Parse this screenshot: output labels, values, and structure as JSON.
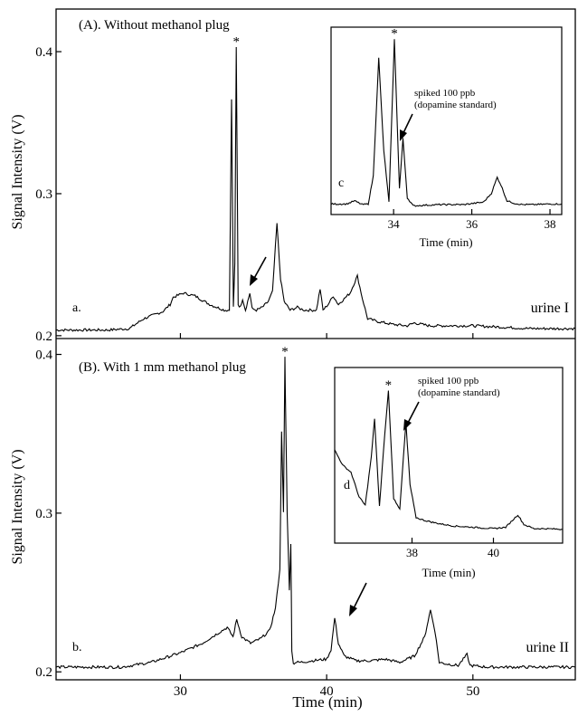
{
  "chart_data": [
    {
      "type": "line",
      "title": "(A). Without methanol plug",
      "ylabel": "Signal Intensity (V)",
      "xlabel": "",
      "xlim": [
        21.5,
        57
      ],
      "ylim": [
        0.198,
        0.43
      ],
      "yticks": [
        0.2,
        0.3,
        0.4
      ],
      "xticks": [
        30,
        40,
        50
      ],
      "show_x_tick_labels": false,
      "grid": false,
      "panel_label": "a.",
      "series": [
        {
          "name": "urine I",
          "x": [
            21.5,
            25,
            26.5,
            27.5,
            28.8,
            29.3,
            29.5,
            30.2,
            31.0,
            32.0,
            33.0,
            33.35,
            33.5,
            33.62,
            33.72,
            33.82,
            33.95,
            34.1,
            34.25,
            34.45,
            34.6,
            34.75,
            34.9,
            35.2,
            35.6,
            36.0,
            36.3,
            36.6,
            36.85,
            37.1,
            37.5,
            38.0,
            38.2,
            38.5,
            39.3,
            39.55,
            39.75,
            40.1,
            40.45,
            40.8,
            41.2,
            41.6,
            42.1,
            42.45,
            42.8,
            43.5,
            44.5,
            45.5,
            46.0,
            47.0,
            48.0,
            50.0,
            52.0,
            54.0,
            57.0
          ],
          "y": [
            0.204,
            0.204,
            0.205,
            0.212,
            0.217,
            0.222,
            0.227,
            0.23,
            0.228,
            0.222,
            0.218,
            0.218,
            0.366,
            0.22,
            0.25,
            0.403,
            0.222,
            0.22,
            0.226,
            0.218,
            0.224,
            0.23,
            0.219,
            0.218,
            0.22,
            0.224,
            0.231,
            0.279,
            0.24,
            0.224,
            0.218,
            0.22,
            0.219,
            0.218,
            0.218,
            0.233,
            0.218,
            0.222,
            0.228,
            0.222,
            0.226,
            0.23,
            0.242,
            0.226,
            0.212,
            0.21,
            0.208,
            0.207,
            0.209,
            0.207,
            0.207,
            0.207,
            0.206,
            0.205,
            0.205
          ]
        }
      ],
      "annotations": [
        {
          "text": "*",
          "x": 33.82
        }
      ]
    },
    {
      "type": "line",
      "title": "(B). With 1 mm methanol plug",
      "ylabel": "Signal Intensity (V)",
      "xlabel": "Time (min)",
      "xlim": [
        21.5,
        57
      ],
      "ylim": [
        0.195,
        0.41
      ],
      "yticks": [
        0.2,
        0.3,
        0.4
      ],
      "xticks": [
        30,
        40,
        50
      ],
      "grid": false,
      "panel_label": "b.",
      "series": [
        {
          "name": "urine II",
          "x": [
            21.5,
            26,
            28,
            30,
            31.5,
            32.5,
            33.2,
            33.6,
            33.85,
            34.2,
            34.8,
            35.5,
            36.1,
            36.5,
            36.8,
            36.92,
            37.05,
            37.15,
            37.2,
            37.3,
            37.45,
            37.55,
            37.62,
            37.72,
            37.85,
            38.2,
            39,
            40.0,
            40.3,
            40.55,
            40.8,
            41.2,
            42.0,
            43.0,
            44.0,
            45.0,
            46.0,
            46.7,
            47.1,
            47.4,
            47.7,
            48.2,
            49.0,
            49.6,
            49.8,
            51,
            54,
            57
          ],
          "y": [
            0.203,
            0.203,
            0.206,
            0.212,
            0.218,
            0.224,
            0.228,
            0.222,
            0.233,
            0.222,
            0.218,
            0.221,
            0.226,
            0.24,
            0.265,
            0.352,
            0.3,
            0.398,
            0.36,
            0.3,
            0.252,
            0.28,
            0.214,
            0.205,
            0.206,
            0.206,
            0.207,
            0.208,
            0.214,
            0.234,
            0.218,
            0.21,
            0.207,
            0.207,
            0.208,
            0.206,
            0.21,
            0.222,
            0.239,
            0.226,
            0.206,
            0.205,
            0.204,
            0.211,
            0.204,
            0.203,
            0.203,
            0.203
          ]
        }
      ],
      "annotations": [
        {
          "text": "*",
          "x": 37.15
        }
      ]
    },
    {
      "type": "line",
      "title": "",
      "xlabel": "Time (min)",
      "xlim": [
        32.4,
        38.3
      ],
      "ylim": [
        0.198,
        0.5
      ],
      "xticks": [
        34,
        36,
        38
      ],
      "grid": false,
      "panel_label": "c",
      "series": [
        {
          "name": "",
          "x": [
            32.4,
            32.8,
            33.0,
            33.2,
            33.35,
            33.48,
            33.62,
            33.75,
            33.88,
            34.02,
            34.15,
            34.24,
            34.35,
            34.5,
            34.8,
            35.2,
            35.8,
            36.3,
            36.5,
            36.65,
            36.75,
            36.9,
            37.1,
            37.3,
            37.6,
            38.0,
            38.3
          ],
          "y": [
            0.215,
            0.215,
            0.22,
            0.214,
            0.215,
            0.26,
            0.45,
            0.3,
            0.218,
            0.48,
            0.24,
            0.32,
            0.225,
            0.212,
            0.213,
            0.214,
            0.214,
            0.218,
            0.232,
            0.258,
            0.245,
            0.22,
            0.216,
            0.214,
            0.214,
            0.215,
            0.215
          ]
        }
      ],
      "annotations": [
        {
          "text": "*",
          "x": 34.02
        },
        {
          "text": "spiked 100 ppb",
          "x": 34.3
        },
        {
          "text": "(dopamine standard)",
          "x": 34.3
        }
      ]
    },
    {
      "type": "line",
      "title": "",
      "xlabel": "Time (min)",
      "xlim": [
        36.1,
        41.7
      ],
      "ylim": [
        0.195,
        0.45
      ],
      "xticks": [
        38,
        40
      ],
      "grid": false,
      "panel_label": "d",
      "series": [
        {
          "name": "",
          "x": [
            36.1,
            36.3,
            36.5,
            36.7,
            36.85,
            37.0,
            37.08,
            37.2,
            37.3,
            37.42,
            37.55,
            37.7,
            37.85,
            37.95,
            38.1,
            38.3,
            38.6,
            39.0,
            39.5,
            40.0,
            40.3,
            40.5,
            40.6,
            40.75,
            41.0,
            41.3,
            41.7
          ],
          "y": [
            0.33,
            0.308,
            0.298,
            0.262,
            0.25,
            0.32,
            0.376,
            0.248,
            0.33,
            0.416,
            0.26,
            0.245,
            0.37,
            0.28,
            0.232,
            0.228,
            0.224,
            0.22,
            0.218,
            0.216,
            0.218,
            0.23,
            0.236,
            0.222,
            0.216,
            0.216,
            0.215
          ]
        }
      ],
      "annotations": [
        {
          "text": "*",
          "x": 37.42
        },
        {
          "text": "spiked 100 ppb",
          "x": 37.9
        },
        {
          "text": "(dopamine standard)",
          "x": 37.9
        }
      ]
    }
  ]
}
